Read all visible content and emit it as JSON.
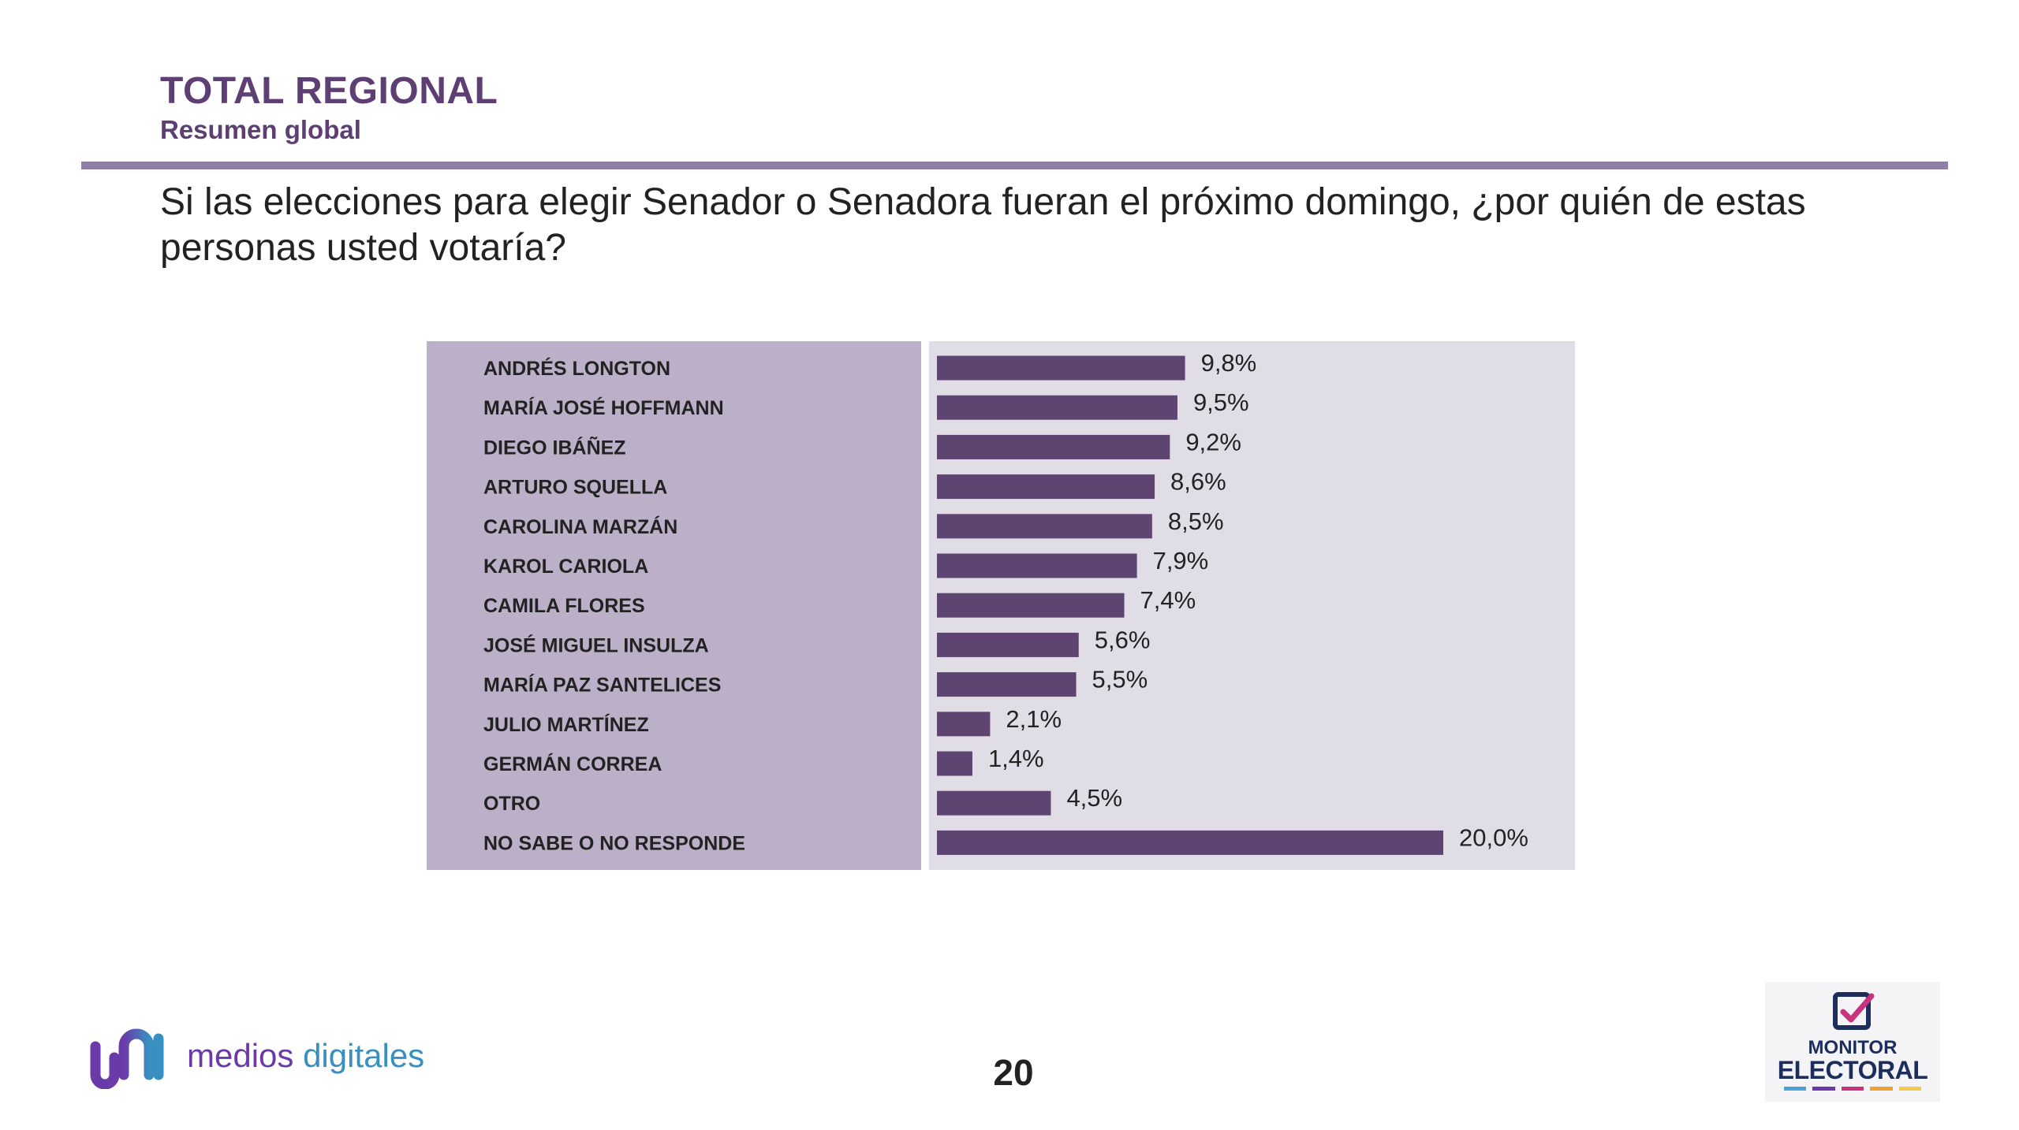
{
  "header": {
    "title": "TOTAL REGIONAL",
    "subtitle": "Resumen global"
  },
  "question": "Si las elecciones para elegir Senador o Senadora fueran el próximo domingo, ¿por quién de estas personas usted votaría?",
  "chart_data": {
    "type": "bar",
    "orientation": "horizontal",
    "title": "",
    "xlabel": "",
    "ylabel": "",
    "xlim": [
      0,
      20
    ],
    "categories": [
      "ANDRÉS LONGTON",
      "MARÍA JOSÉ HOFFMANN",
      "DIEGO IBÁÑEZ",
      "ARTURO SQUELLA",
      "CAROLINA MARZÁN",
      "KAROL CARIOLA",
      "CAMILA FLORES",
      "JOSÉ MIGUEL INSULZA",
      "MARÍA PAZ SANTELICES",
      "JULIO MARTÍNEZ",
      "GERMÁN CORREA",
      "OTRO",
      "NO SABE O NO RESPONDE"
    ],
    "values": [
      9.8,
      9.5,
      9.2,
      8.6,
      8.5,
      7.9,
      7.4,
      5.6,
      5.5,
      2.1,
      1.4,
      4.5,
      20.0
    ],
    "value_labels": [
      "9,8%",
      "9,5%",
      "9,2%",
      "8,6%",
      "8,5%",
      "7,9%",
      "7,4%",
      "5,6%",
      "5,5%",
      "2,1%",
      "1,4%",
      "4,5%",
      "20,0%"
    ],
    "bar_color": "#5e4471"
  },
  "footer": {
    "brand_word1": "medios",
    "brand_word2": "digitales",
    "page_number": "20",
    "monitor_line1": "MONITOR",
    "monitor_line2": "ELECTORAL"
  },
  "colors": {
    "accent": "#5e3f73",
    "divider": "#917ea8",
    "label_panel": "#bcb0c9",
    "bar_panel": "#e1dde6"
  }
}
